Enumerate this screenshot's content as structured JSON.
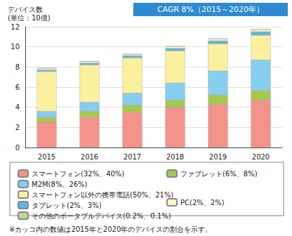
{
  "chart_data": {
    "type": "bar",
    "stacked": true,
    "grid": true,
    "y_label": "デバイス数\n(単位：10億)",
    "annotation": "CAGR 8%（2015～2020年）",
    "footnote": "※カッコ内の数値は2015年と2020年のデバイスの割合を示す。",
    "legend": "bottom",
    "categories": [
      "2015",
      "2016",
      "2017",
      "2018",
      "2019",
      "2020"
    ],
    "ylim": [
      0,
      12
    ],
    "yticks": [
      0,
      2,
      4,
      6,
      8,
      10,
      12
    ],
    "series": [
      {
        "name": "スマートフォン(32%、40%)",
        "color": "#f3928a",
        "values": [
          2.5,
          3.0,
          3.5,
          4.0,
          4.3,
          4.7
        ]
      },
      {
        "name": "ファブレット(6%、8%)",
        "color": "#a6c94c",
        "values": [
          0.5,
          0.6,
          0.7,
          0.7,
          0.9,
          0.95
        ]
      },
      {
        "name": "M2M(8%、26%)",
        "color": "#86cdee",
        "values": [
          0.6,
          0.9,
          1.2,
          1.7,
          2.4,
          3.05
        ]
      },
      {
        "name": "スマートフォン以外の携帯電話(50%、21%)",
        "color": "#fbf09e",
        "values": [
          3.95,
          3.7,
          3.5,
          3.2,
          2.7,
          2.45
        ]
      },
      {
        "name": "タブレット(2%、3%)",
        "color": "#5fb6e4",
        "values": [
          0.16,
          0.2,
          0.22,
          0.25,
          0.3,
          0.35
        ]
      },
      {
        "name": "PC(2%、2%)",
        "color": "#fcf7c4",
        "values": [
          0.16,
          0.15,
          0.15,
          0.2,
          0.2,
          0.23
        ]
      },
      {
        "name": "その他のポータブルデバイス(0.2%、0.1%)",
        "color": "#b9da92",
        "values": [
          0.02,
          0.02,
          0.02,
          0.02,
          0.02,
          0.01
        ]
      }
    ]
  }
}
